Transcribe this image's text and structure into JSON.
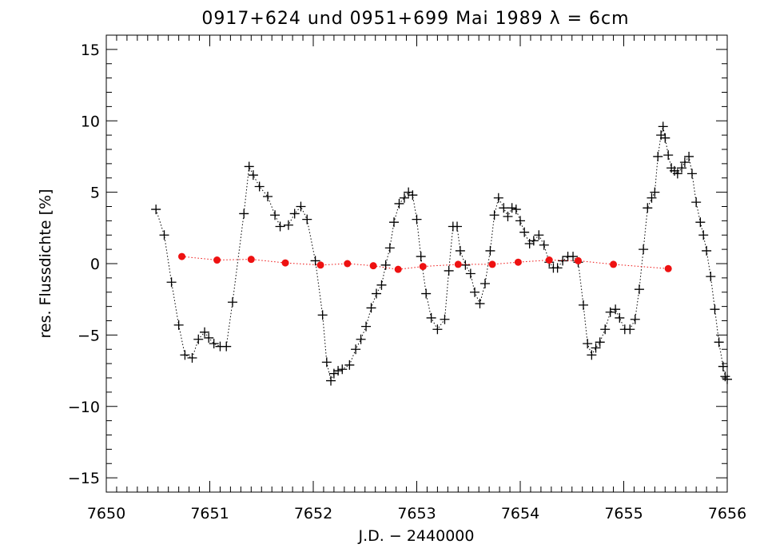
{
  "chart_data": {
    "type": "scatter",
    "title": "0917+624   und   0951+699      Mai 1989  λ = 6cm",
    "xlabel": "J.D. − 2440000",
    "ylabel": "res. Flussdichte [%]",
    "xlim": [
      7650,
      7656
    ],
    "ylim": [
      -16,
      16
    ],
    "xticks": [
      7650,
      7651,
      7652,
      7653,
      7654,
      7655,
      7656
    ],
    "yticks": [
      -15,
      -10,
      -5,
      0,
      5,
      10,
      15
    ],
    "grid": false,
    "colors": {
      "series_1": "#000000",
      "series_2": "#ee1111"
    },
    "series": [
      {
        "marker": "plus",
        "line": "dotted",
        "points": [
          [
            7650.48,
            3.8
          ],
          [
            7650.56,
            2.0
          ],
          [
            7650.63,
            -1.3
          ],
          [
            7650.7,
            -4.3
          ],
          [
            7650.76,
            -6.4
          ],
          [
            7650.83,
            -6.6
          ],
          [
            7650.89,
            -5.3
          ],
          [
            7650.95,
            -4.8
          ],
          [
            7650.99,
            -5.2
          ],
          [
            7651.04,
            -5.6
          ],
          [
            7651.1,
            -5.8
          ],
          [
            7651.16,
            -5.8
          ],
          [
            7651.22,
            -2.7
          ],
          [
            7651.33,
            3.5
          ],
          [
            7651.38,
            6.8
          ],
          [
            7651.42,
            6.2
          ],
          [
            7651.48,
            5.4
          ],
          [
            7651.56,
            4.7
          ],
          [
            7651.63,
            3.4
          ],
          [
            7651.68,
            2.6
          ],
          [
            7651.76,
            2.7
          ],
          [
            7651.82,
            3.5
          ],
          [
            7651.88,
            4.0
          ],
          [
            7651.94,
            3.1
          ],
          [
            7652.02,
            0.2
          ],
          [
            7652.09,
            -3.6
          ],
          [
            7652.13,
            -6.9
          ],
          [
            7652.17,
            -8.2
          ],
          [
            7652.2,
            -7.7
          ],
          [
            7652.24,
            -7.5
          ],
          [
            7652.28,
            -7.4
          ],
          [
            7652.35,
            -7.1
          ],
          [
            7652.41,
            -6.0
          ],
          [
            7652.46,
            -5.3
          ],
          [
            7652.51,
            -4.4
          ],
          [
            7652.56,
            -3.1
          ],
          [
            7652.61,
            -2.1
          ],
          [
            7652.66,
            -1.5
          ],
          [
            7652.7,
            -0.1
          ],
          [
            7652.74,
            1.1
          ],
          [
            7652.78,
            2.9
          ],
          [
            7652.83,
            4.2
          ],
          [
            7652.88,
            4.6
          ],
          [
            7652.92,
            5.0
          ],
          [
            7652.96,
            4.8
          ],
          [
            7653.0,
            3.1
          ],
          [
            7653.04,
            0.5
          ],
          [
            7653.09,
            -2.1
          ],
          [
            7653.14,
            -3.8
          ],
          [
            7653.2,
            -4.6
          ],
          [
            7653.27,
            -3.9
          ],
          [
            7653.31,
            -0.5
          ],
          [
            7653.35,
            2.6
          ],
          [
            7653.39,
            2.6
          ],
          [
            7653.42,
            0.9
          ],
          [
            7653.47,
            -0.1
          ],
          [
            7653.52,
            -0.7
          ],
          [
            7653.56,
            -2.0
          ],
          [
            7653.61,
            -2.8
          ],
          [
            7653.66,
            -1.4
          ],
          [
            7653.71,
            0.9
          ],
          [
            7653.75,
            3.4
          ],
          [
            7653.79,
            4.6
          ],
          [
            7653.84,
            3.9
          ],
          [
            7653.88,
            3.3
          ],
          [
            7653.92,
            3.9
          ],
          [
            7653.96,
            3.8
          ],
          [
            7654.0,
            3.0
          ],
          [
            7654.04,
            2.2
          ],
          [
            7654.09,
            1.4
          ],
          [
            7654.13,
            1.6
          ],
          [
            7654.18,
            2.0
          ],
          [
            7654.23,
            1.3
          ],
          [
            7654.28,
            0.1
          ],
          [
            7654.32,
            -0.3
          ],
          [
            7654.36,
            -0.3
          ],
          [
            7654.41,
            0.2
          ],
          [
            7654.46,
            0.5
          ],
          [
            7654.51,
            0.5
          ],
          [
            7654.56,
            0.1
          ],
          [
            7654.61,
            -2.9
          ],
          [
            7654.65,
            -5.6
          ],
          [
            7654.69,
            -6.4
          ],
          [
            7654.73,
            -5.9
          ],
          [
            7654.77,
            -5.5
          ],
          [
            7654.82,
            -4.6
          ],
          [
            7654.87,
            -3.4
          ],
          [
            7654.92,
            -3.2
          ],
          [
            7654.96,
            -3.8
          ],
          [
            7655.01,
            -4.6
          ],
          [
            7655.06,
            -4.6
          ],
          [
            7655.11,
            -3.9
          ],
          [
            7655.15,
            -1.8
          ],
          [
            7655.19,
            1.0
          ],
          [
            7655.23,
            3.9
          ],
          [
            7655.27,
            4.6
          ],
          [
            7655.3,
            5.0
          ],
          [
            7655.33,
            7.5
          ],
          [
            7655.36,
            9.0
          ],
          [
            7655.38,
            9.6
          ],
          [
            7655.4,
            8.8
          ],
          [
            7655.43,
            7.6
          ],
          [
            7655.46,
            6.7
          ],
          [
            7655.49,
            6.5
          ],
          [
            7655.52,
            6.3
          ],
          [
            7655.56,
            6.7
          ],
          [
            7655.59,
            7.1
          ],
          [
            7655.63,
            7.5
          ],
          [
            7655.66,
            6.3
          ],
          [
            7655.7,
            4.3
          ],
          [
            7655.74,
            2.9
          ],
          [
            7655.77,
            2.0
          ],
          [
            7655.8,
            0.9
          ],
          [
            7655.84,
            -0.9
          ],
          [
            7655.88,
            -3.2
          ],
          [
            7655.92,
            -5.5
          ],
          [
            7655.96,
            -7.2
          ],
          [
            7655.98,
            -7.9
          ],
          [
            7656.0,
            -8.1
          ]
        ]
      },
      {
        "marker": "filled-circle",
        "line": "dotted",
        "points": [
          [
            7650.73,
            0.5
          ],
          [
            7651.07,
            0.25
          ],
          [
            7651.4,
            0.3
          ],
          [
            7651.73,
            0.05
          ],
          [
            7652.07,
            -0.1
          ],
          [
            7652.33,
            0.0
          ],
          [
            7652.58,
            -0.15
          ],
          [
            7652.82,
            -0.4
          ],
          [
            7653.06,
            -0.2
          ],
          [
            7653.4,
            -0.05
          ],
          [
            7653.73,
            -0.05
          ],
          [
            7653.98,
            0.1
          ],
          [
            7654.28,
            0.25
          ],
          [
            7654.56,
            0.2
          ],
          [
            7654.9,
            -0.05
          ],
          [
            7655.43,
            -0.35
          ]
        ]
      }
    ]
  }
}
